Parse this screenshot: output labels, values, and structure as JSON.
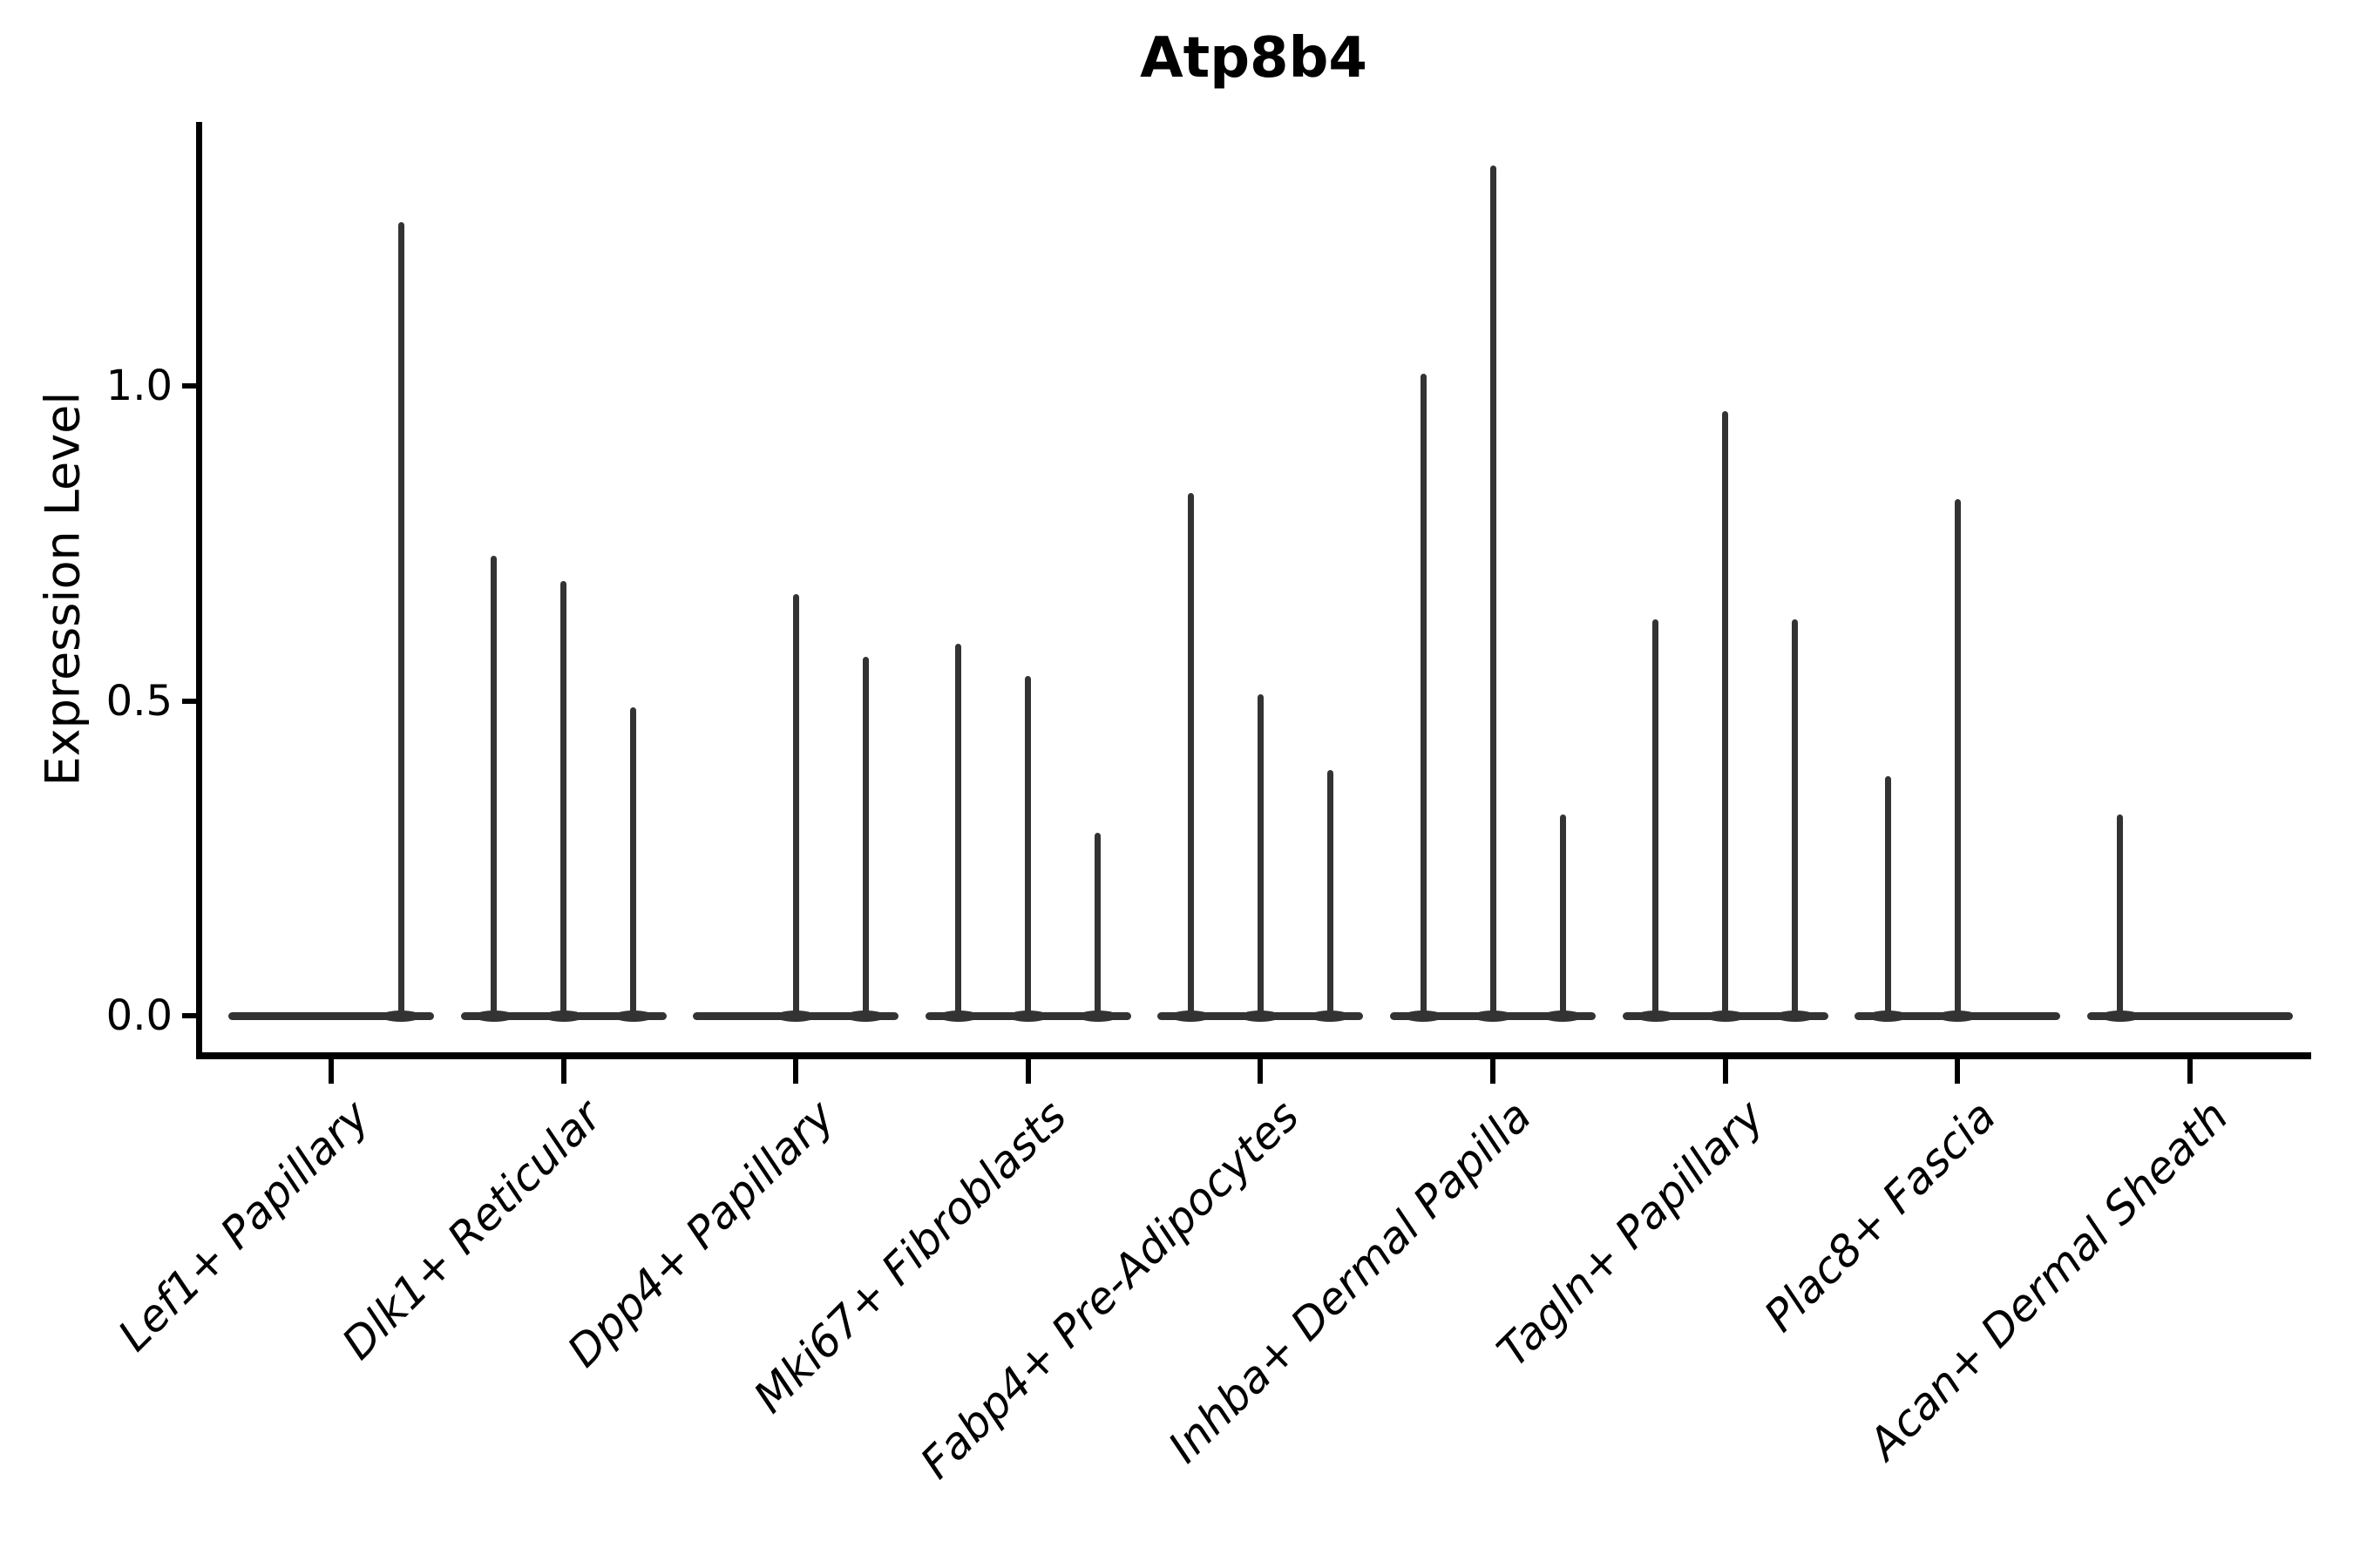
{
  "title": "Atp8b4",
  "colors": {
    "violin": "#333333",
    "axis": "#000000",
    "text": "#000000",
    "background": "#ffffff"
  },
  "y_axis": {
    "label": "Expression Level",
    "tick_labels": [
      "0.0",
      "0.5",
      "1.0"
    ]
  },
  "chart_data": {
    "type": "violin",
    "title": "Atp8b4",
    "xlabel": "",
    "ylabel": "Expression Level",
    "ylim": [
      -0.06,
      1.42
    ],
    "yticks": [
      0.0,
      0.5,
      1.0
    ],
    "grid": false,
    "legend": "none",
    "violins_per_category": 3,
    "categories": [
      "Lef1+ Papillary",
      "Dlk1+ Reticular",
      "Dpp4+ Papillary",
      "Mki67+ Fibroblasts",
      "Fabp4+ Pre-Adipocytes",
      "Inhba+ Dermal Papilla",
      "Tagln+ Papillary",
      "Plac8+ Fascia",
      "Acan+ Dermal Sheath"
    ],
    "groups": [
      {
        "category": "Lef1+ Papillary",
        "spike_maxima": [
          null,
          null,
          1.26
        ]
      },
      {
        "category": "Dlk1+ Reticular",
        "spike_maxima": [
          0.73,
          0.69,
          0.49
        ]
      },
      {
        "category": "Dpp4+ Papillary",
        "spike_maxima": [
          null,
          0.67,
          0.57
        ]
      },
      {
        "category": "Mki67+ Fibroblasts",
        "spike_maxima": [
          0.59,
          0.54,
          0.29
        ]
      },
      {
        "category": "Fabp4+ Pre-Adipocytes",
        "spike_maxima": [
          0.83,
          0.51,
          0.39
        ]
      },
      {
        "category": "Inhba+ Dermal Papilla",
        "spike_maxima": [
          1.02,
          1.35,
          0.32
        ]
      },
      {
        "category": "Tagln+ Papillary",
        "spike_maxima": [
          0.63,
          0.96,
          0.63
        ]
      },
      {
        "category": "Plac8+ Fascia",
        "spike_maxima": [
          0.38,
          0.82,
          null
        ]
      },
      {
        "category": "Acan+ Dermal Sheath",
        "spike_maxima": [
          0.32,
          null,
          null
        ]
      }
    ]
  }
}
